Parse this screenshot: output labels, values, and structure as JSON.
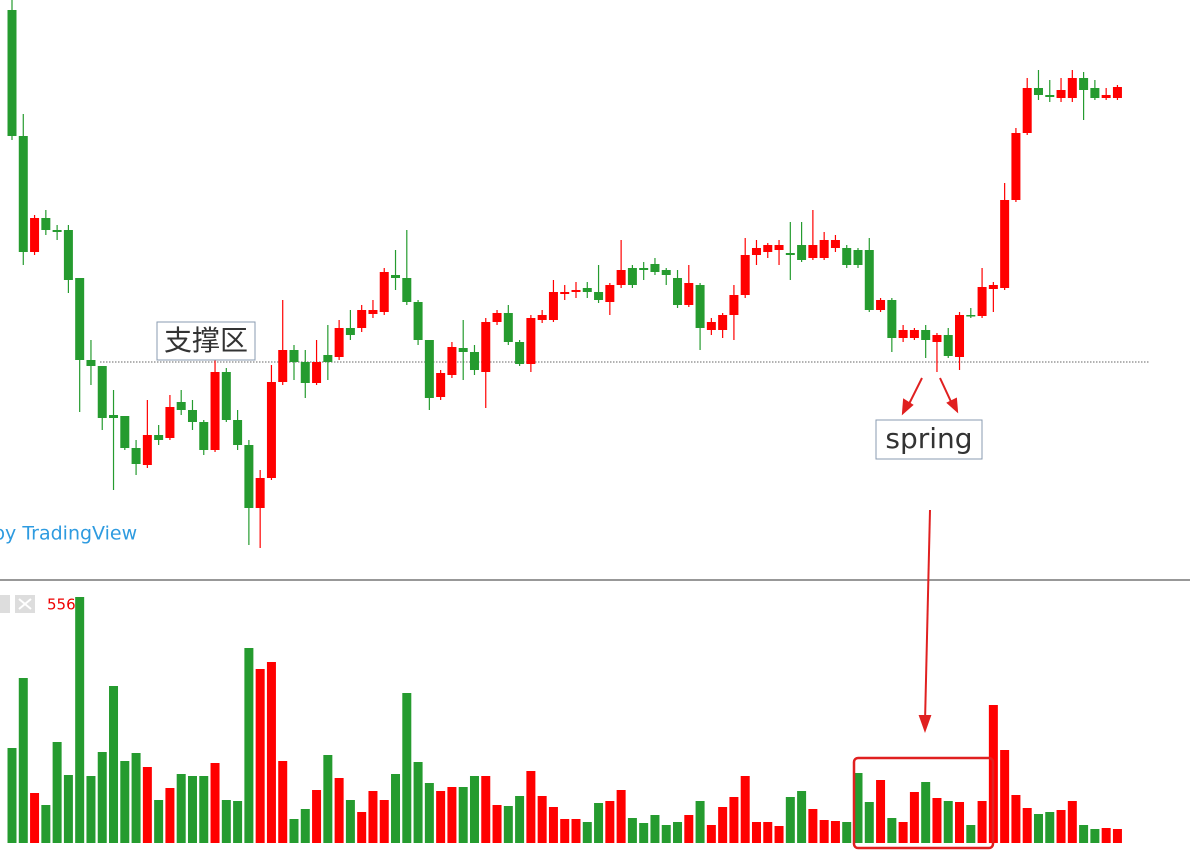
{
  "chart_data": {
    "type": "candlestick",
    "open": [
      590,
      464,
      348,
      382,
      370,
      370,
      322,
      240,
      234,
      185,
      184,
      152,
      135,
      165,
      162,
      198,
      190,
      178,
      150,
      228,
      180,
      155,
      92,
      122,
      218,
      250,
      238,
      217,
      245,
      243,
      272,
      272,
      286,
      288,
      325,
      322,
      298,
      260,
      203,
      225,
      252,
      248,
      228,
      278,
      287,
      258,
      236,
      280,
      280,
      306,
      308,
      312,
      308,
      298,
      315,
      332,
      332,
      336,
      330,
      322,
      295,
      315,
      270,
      270,
      285,
      305,
      345,
      348,
      350,
      347,
      355,
      342,
      342,
      352,
      352,
      350,
      350,
      290,
      300,
      262,
      262,
      270,
      258,
      265,
      243,
      285,
      284,
      311,
      312,
      400,
      467,
      512,
      505,
      502,
      502,
      522,
      512,
      502,
      502
    ],
    "high": [
      600,
      486,
      385,
      390,
      375,
      375,
      322,
      260,
      234,
      210,
      184,
      160,
      200,
      175,
      205,
      210,
      200,
      180,
      240,
      232,
      190,
      160,
      130,
      235,
      300,
      255,
      250,
      260,
      275,
      280,
      290,
      295,
      300,
      332,
      350,
      370,
      300,
      260,
      230,
      258,
      280,
      255,
      282,
      290,
      295,
      260,
      285,
      290,
      320,
      315,
      318,
      318,
      335,
      317,
      360,
      335,
      338,
      342,
      332,
      330,
      335,
      317,
      282,
      287,
      315,
      362,
      360,
      357,
      360,
      378,
      378,
      390,
      368,
      365,
      355,
      352,
      362,
      302,
      302,
      275,
      272,
      275,
      267,
      272,
      288,
      292,
      332,
      318,
      417,
      472,
      522,
      530,
      520,
      522,
      530,
      528,
      520,
      512,
      515
    ],
    "low": [
      460,
      335,
      345,
      365,
      360,
      307,
      188,
      215,
      170,
      110,
      150,
      125,
      132,
      155,
      160,
      185,
      170,
      145,
      148,
      178,
      150,
      55,
      52,
      120,
      215,
      220,
      202,
      215,
      220,
      240,
      260,
      268,
      282,
      285,
      310,
      295,
      255,
      190,
      200,
      222,
      220,
      225,
      192,
      275,
      255,
      234,
      228,
      277,
      278,
      300,
      302,
      302,
      297,
      285,
      312,
      312,
      320,
      325,
      315,
      292,
      293,
      250,
      265,
      262,
      260,
      302,
      335,
      342,
      335,
      320,
      338,
      340,
      340,
      348,
      332,
      332,
      288,
      288,
      248,
      258,
      260,
      242,
      228,
      242,
      230,
      282,
      282,
      288,
      310,
      398,
      465,
      500,
      498,
      498,
      498,
      480,
      500,
      500,
      500
    ],
    "close": [
      464,
      348,
      382,
      370,
      368,
      320,
      240,
      234,
      182,
      182,
      152,
      136,
      165,
      160,
      193,
      190,
      178,
      150,
      228,
      180,
      155,
      92,
      122,
      218,
      250,
      238,
      217,
      238,
      238,
      272,
      265,
      290,
      290,
      328,
      322,
      298,
      260,
      202,
      227,
      253,
      248,
      230,
      278,
      287,
      258,
      236,
      282,
      285,
      308,
      308,
      310,
      308,
      300,
      315,
      330,
      315,
      330,
      328,
      325,
      295,
      317,
      272,
      278,
      285,
      305,
      345,
      352,
      355,
      355,
      345,
      340,
      355,
      360,
      360,
      335,
      335,
      290,
      300,
      262,
      270,
      270,
      260,
      265,
      244,
      285,
      284,
      313,
      315,
      400,
      467,
      512,
      505,
      503,
      510,
      522,
      510,
      502,
      505,
      513
    ],
    "volume": [
      95,
      165,
      50,
      38,
      101,
      68,
      246,
      67,
      91,
      157,
      82,
      90,
      76,
      43,
      55,
      69,
      67,
      67,
      80,
      43,
      42,
      195,
      174,
      181,
      82,
      24,
      34,
      53,
      88,
      65,
      43,
      31,
      52,
      43,
      69,
      150,
      81,
      60,
      52,
      56,
      56,
      67,
      67,
      38,
      37,
      47,
      72,
      47,
      36,
      24,
      24,
      21,
      40,
      42,
      53,
      25,
      20,
      28,
      18,
      21,
      28,
      42,
      18,
      36,
      46,
      67,
      21,
      21,
      17,
      46,
      52,
      34,
      23,
      22,
      21,
      70,
      41,
      63,
      25,
      21,
      51,
      61,
      45,
      42,
      41,
      18,
      42,
      138,
      93,
      48,
      35,
      29,
      31,
      33,
      42,
      18,
      14,
      15,
      14
    ],
    "ylim": [
      20,
      600
    ],
    "volume_ylim": [
      0,
      263
    ],
    "up_color": "#ff0000",
    "down_color": "#259b2f",
    "support_level": 238,
    "support_label": "支撑区",
    "spring_label": "spring",
    "watermark": "by TradingView",
    "volume_label": "556"
  }
}
